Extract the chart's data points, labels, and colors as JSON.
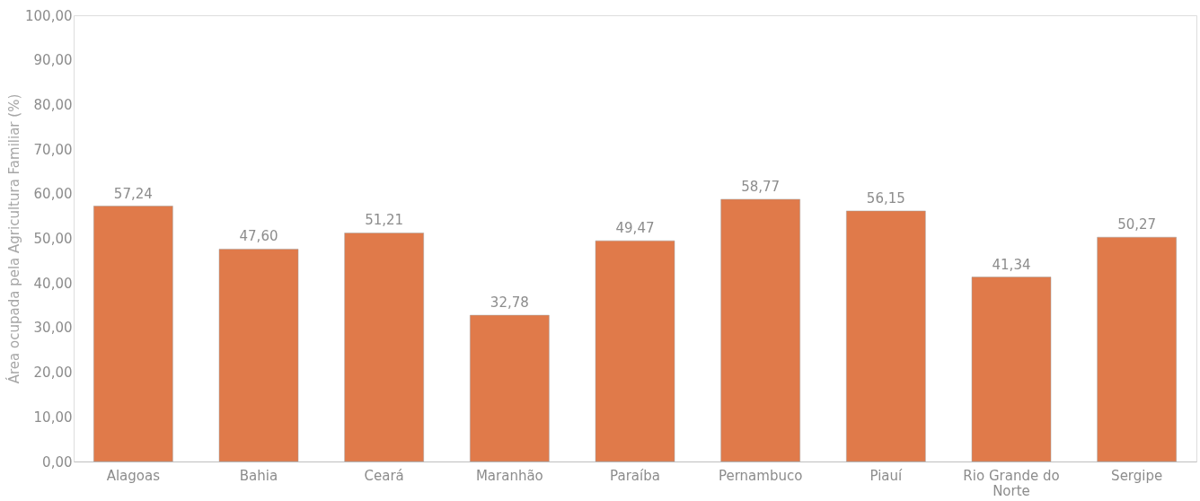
{
  "chart_data": {
    "type": "bar",
    "ylabel": "Área ocupada pela Agricultura Familiar (%)",
    "categories": [
      "Alagoas",
      "Bahia",
      "Ceará",
      "Maranhão",
      "Paraíba",
      "Pernambuco",
      "Piauí",
      "Rio Grande do Norte",
      "Sergipe"
    ],
    "values": [
      57.24,
      47.6,
      51.21,
      32.78,
      49.47,
      58.77,
      56.15,
      41.34,
      50.27
    ],
    "value_labels": [
      "57,24",
      "47,60",
      "51,21",
      "32,78",
      "49,47",
      "58,77",
      "56,15",
      "41,34",
      "50,27"
    ],
    "color": "#e07a4a",
    "ylim": [
      0,
      100
    ],
    "yticks": [
      {
        "value": 0,
        "label": "0,00"
      },
      {
        "value": 10,
        "label": "10,00"
      },
      {
        "value": 20,
        "label": "20,00"
      },
      {
        "value": 30,
        "label": "30,00"
      },
      {
        "value": 40,
        "label": "40,00"
      },
      {
        "value": 50,
        "label": "50,00"
      },
      {
        "value": 60,
        "label": "60,00"
      },
      {
        "value": 70,
        "label": "70,00"
      },
      {
        "value": 80,
        "label": "80,00"
      },
      {
        "value": 90,
        "label": "90,00"
      },
      {
        "value": 100,
        "label": "100,00"
      }
    ],
    "grid": false
  }
}
